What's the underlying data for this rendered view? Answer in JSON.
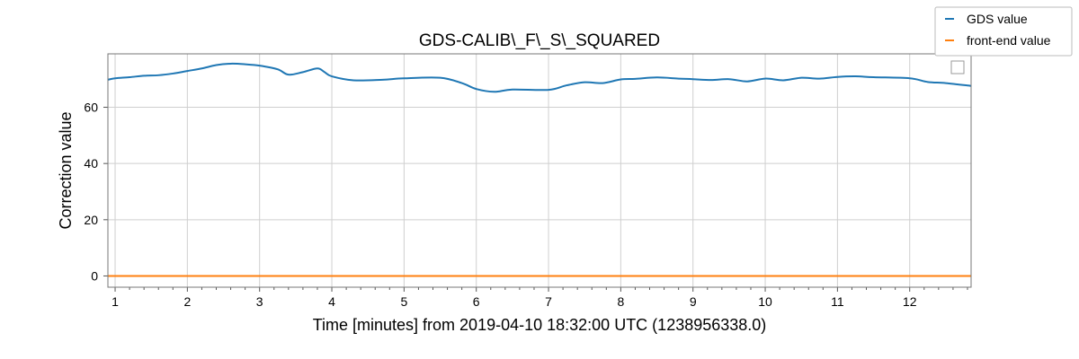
{
  "chart_data": {
    "type": "line",
    "title": "GDS-CALIB\\_F\\_S\\_SQUARED",
    "xlabel": "Time [minutes] from 2019-04-10 18:32:00 UTC (1238956338.0)",
    "ylabel": "Correction value",
    "xlim": [
      0.9,
      12.85
    ],
    "ylim": [
      -4,
      79
    ],
    "xticks": [
      1,
      2,
      3,
      4,
      5,
      6,
      7,
      8,
      9,
      10,
      11,
      12
    ],
    "yticks": [
      0,
      20,
      40,
      60
    ],
    "grid": true,
    "legend": {
      "placement": "top-right (outside axes)",
      "entries": [
        "GDS value",
        "front-end value"
      ]
    },
    "series": [
      {
        "name": "GDS value",
        "color": "#1f77b4",
        "x": [
          0.9,
          1.0,
          1.2,
          1.4,
          1.6,
          1.8,
          2.0,
          2.2,
          2.4,
          2.6,
          2.8,
          3.0,
          3.25,
          3.4,
          3.6,
          3.8,
          3.9,
          4.0,
          4.3,
          4.7,
          5.0,
          5.5,
          5.8,
          6.0,
          6.25,
          6.5,
          7.0,
          7.25,
          7.5,
          7.75,
          8.0,
          8.2,
          8.5,
          8.8,
          9.0,
          9.25,
          9.5,
          9.75,
          10.0,
          10.25,
          10.5,
          10.75,
          11.0,
          11.25,
          11.5,
          12.0,
          12.25,
          12.5,
          12.85
        ],
        "y": [
          69.8,
          70.3,
          70.7,
          71.2,
          71.4,
          72.0,
          72.9,
          73.8,
          75.0,
          75.5,
          75.3,
          74.8,
          73.5,
          71.6,
          72.5,
          73.8,
          72.5,
          71.0,
          69.6,
          69.8,
          70.3,
          70.5,
          68.6,
          66.5,
          65.5,
          66.3,
          66.2,
          67.8,
          68.9,
          68.6,
          69.9,
          70.1,
          70.6,
          70.2,
          70.0,
          69.7,
          70.0,
          69.2,
          70.2,
          69.6,
          70.5,
          70.2,
          70.8,
          71.0,
          70.7,
          70.3,
          69.0,
          68.6,
          67.6
        ]
      },
      {
        "name": "front-end value",
        "color": "#ff7f0e",
        "x": [
          0.9,
          12.85
        ],
        "y": [
          0,
          0
        ]
      }
    ]
  }
}
